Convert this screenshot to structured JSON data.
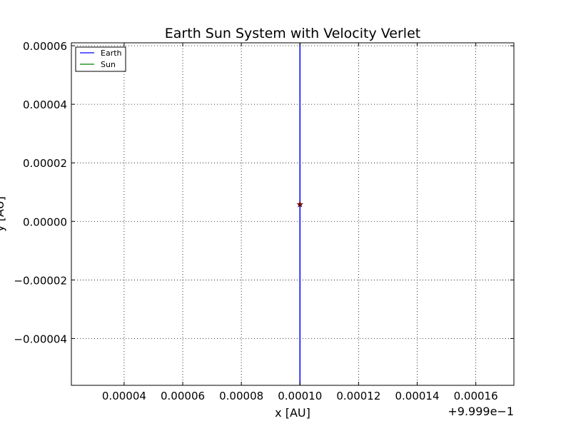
{
  "chart_data": {
    "type": "line",
    "title": "Earth Sun System with Velocity Verlet",
    "xlabel": "x [AU]",
    "ylabel": "y [AU]",
    "x_offset_label": "+9.999e−1",
    "xlim": [
      2.2e-05,
      0.000173
    ],
    "ylim": [
      -5.6e-05,
      6.1e-05
    ],
    "x_ticks": [
      4e-05,
      6e-05,
      8e-05,
      0.0001,
      0.00012,
      0.00014,
      0.00016
    ],
    "x_tick_labels": [
      "0.00004",
      "0.00006",
      "0.00008",
      "0.00010",
      "0.00012",
      "0.00014",
      "0.00016"
    ],
    "y_ticks": [
      6e-05,
      4e-05,
      2e-05,
      0.0,
      -2e-05,
      -4e-05
    ],
    "y_tick_labels": [
      "0.00006",
      "0.00004",
      "0.00002",
      "0.00000",
      "−0.00002",
      "−0.00004"
    ],
    "grid": true,
    "legend_position": "top-left",
    "series": [
      {
        "name": "Earth",
        "color": "#0000ff",
        "x": [
          0.0001,
          0.0001
        ],
        "y": [
          -5.6e-05,
          6.1e-05
        ]
      },
      {
        "name": "Sun",
        "color": "#008000",
        "x": [],
        "y": []
      }
    ],
    "markers": [
      {
        "x": 0.0001,
        "y": 5.8e-06,
        "symbol": "star",
        "color": "#8b0000"
      }
    ]
  }
}
